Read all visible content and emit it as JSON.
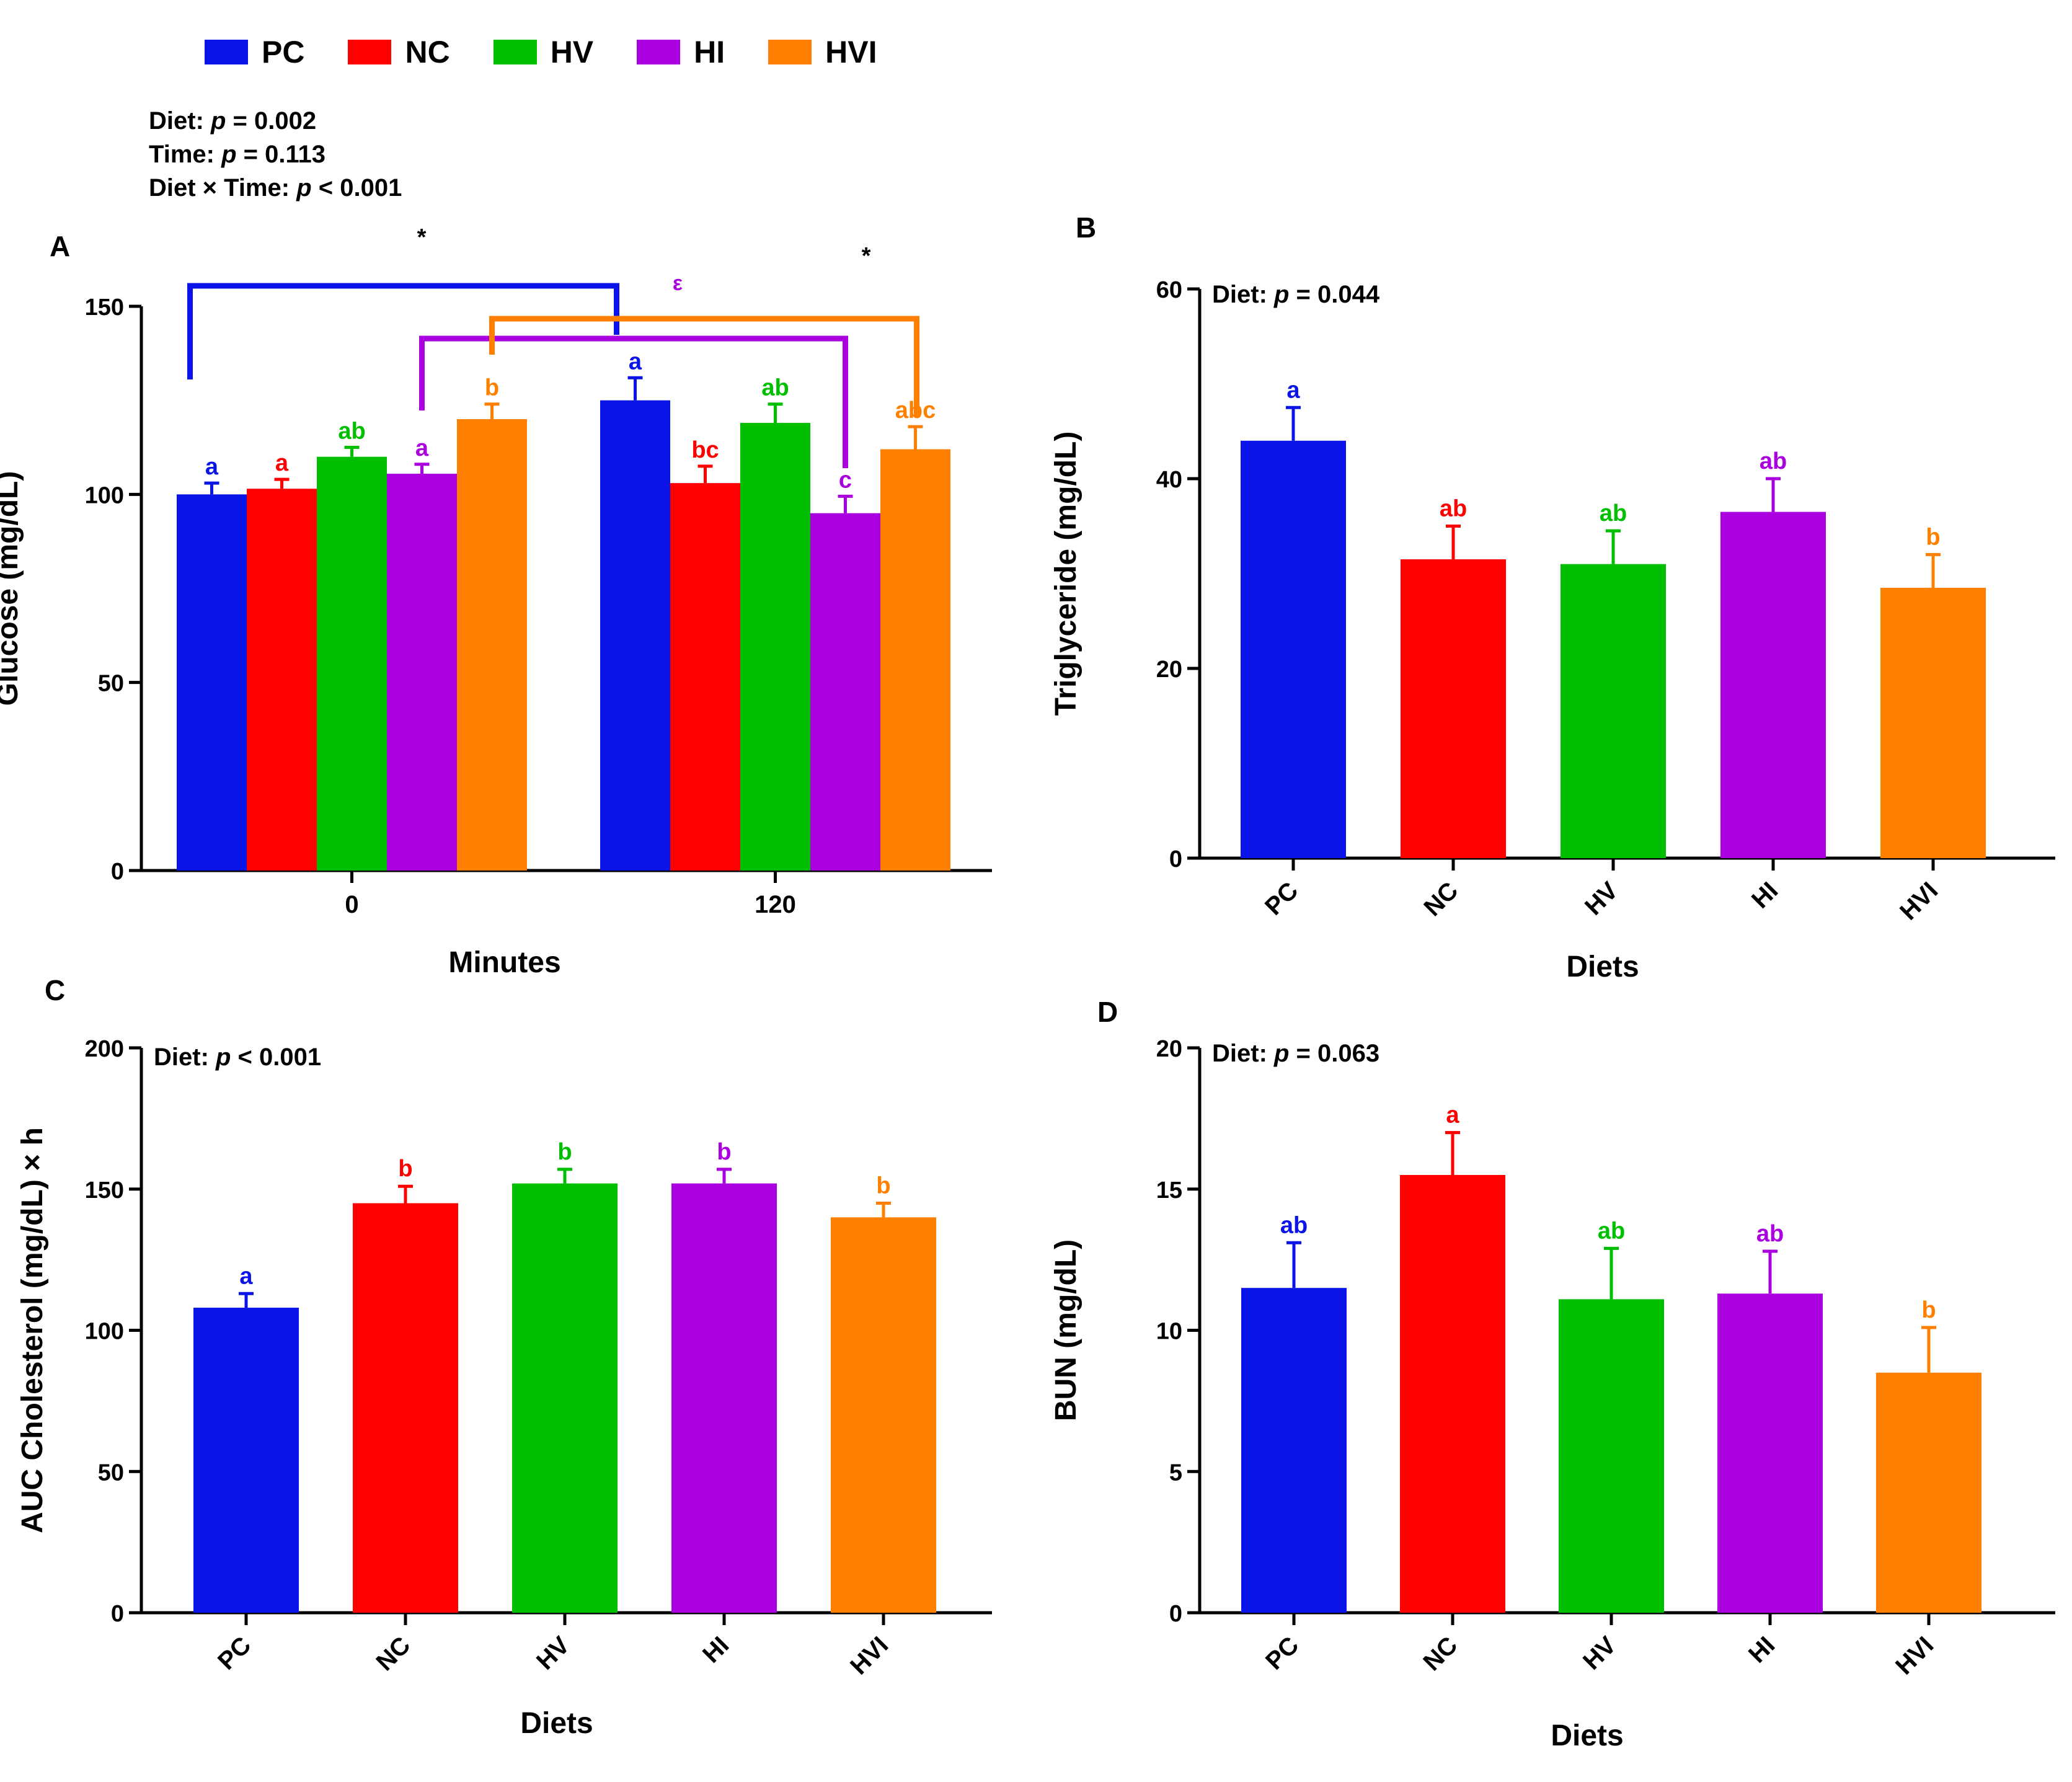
{
  "legend": [
    {
      "label": "PC",
      "color": "#0a14e6"
    },
    {
      "label": "NC",
      "color": "#ff0000"
    },
    {
      "label": "HV",
      "color": "#00bf00"
    },
    {
      "label": "HI",
      "color": "#aa00e0"
    },
    {
      "label": "HVI",
      "color": "#ff8000"
    }
  ],
  "stats": {
    "line1_prefix": "Diet: ",
    "line1_p": "p",
    "line1_rest": " = 0.002",
    "line2_prefix": "Time: ",
    "line2_p": "p",
    "line2_rest": " = 0.113",
    "line3_prefix": "Diet × Time: ",
    "line3_p": "p",
    "line3_rest": " < 0.001"
  },
  "panels": {
    "a": "A",
    "b": "B",
    "c": "C",
    "d": "D"
  },
  "chart_data": [
    {
      "id": "A",
      "type": "bar",
      "title": "",
      "xlabel": "Minutes",
      "ylabel": "Glucose (mg/dL)",
      "ylim": [
        0,
        150
      ],
      "yticks": [
        0,
        50,
        100,
        150
      ],
      "categories": [
        "0",
        "120"
      ],
      "series": [
        {
          "name": "PC",
          "color": "#0a14e6",
          "values": [
            100,
            125
          ],
          "errors": [
            3,
            6
          ],
          "letters": [
            "a",
            "a"
          ]
        },
        {
          "name": "NC",
          "color": "#ff0000",
          "values": [
            101.5,
            103
          ],
          "errors": [
            2.5,
            4.5
          ],
          "letters": [
            "a",
            "bc"
          ]
        },
        {
          "name": "HV",
          "color": "#00bf00",
          "values": [
            110,
            119
          ],
          "errors": [
            2.5,
            5
          ],
          "letters": [
            "ab",
            "ab"
          ]
        },
        {
          "name": "HI",
          "color": "#aa00e0",
          "values": [
            105.5,
            95
          ],
          "errors": [
            2.5,
            4.5
          ],
          "letters": [
            "a",
            "c"
          ]
        },
        {
          "name": "HVI",
          "color": "#ff8000",
          "values": [
            120,
            112
          ],
          "errors": [
            4,
            6
          ],
          "letters": [
            "b",
            "abc"
          ]
        }
      ],
      "annotations": {
        "star1": "*",
        "star2": "*",
        "epsilon": "ε"
      }
    },
    {
      "id": "B",
      "type": "bar",
      "title": "",
      "stat_prefix": "Diet: ",
      "stat_p": "p",
      "stat_rest": " = 0.044",
      "xlabel": "Diets",
      "ylabel": "Triglyceride (mg/dL)",
      "ylim": [
        0,
        60
      ],
      "yticks": [
        0,
        20,
        40,
        60
      ],
      "categories": [
        "PC",
        "NC",
        "HV",
        "HI",
        "HVI"
      ],
      "values": [
        44,
        31.5,
        31,
        36.5,
        28.5
      ],
      "errors": [
        3.5,
        3.5,
        3.5,
        3.5,
        3.5
      ],
      "letters": [
        "a",
        "ab",
        "ab",
        "ab",
        "b"
      ],
      "colors": [
        "#0a14e6",
        "#ff0000",
        "#00bf00",
        "#aa00e0",
        "#ff8000"
      ]
    },
    {
      "id": "C",
      "type": "bar",
      "title": "",
      "stat_prefix": "Diet: ",
      "stat_p": "p",
      "stat_rest": " < 0.001",
      "xlabel": "Diets",
      "ylabel": "AUC Cholesterol (mg/dL) × h",
      "ylim": [
        0,
        200
      ],
      "yticks": [
        0,
        50,
        100,
        150,
        200
      ],
      "categories": [
        "PC",
        "NC",
        "HV",
        "HI",
        "HVI"
      ],
      "values": [
        108,
        145,
        152,
        152,
        140
      ],
      "errors": [
        5,
        6,
        5,
        5,
        5
      ],
      "letters": [
        "a",
        "b",
        "b",
        "b",
        "b"
      ],
      "colors": [
        "#0a14e6",
        "#ff0000",
        "#00bf00",
        "#aa00e0",
        "#ff8000"
      ]
    },
    {
      "id": "D",
      "type": "bar",
      "title": "",
      "stat_prefix": "Diet: ",
      "stat_p": "p",
      "stat_rest": " = 0.063",
      "xlabel": "Diets",
      "ylabel": "BUN (mg/dL)",
      "ylim": [
        0,
        20
      ],
      "yticks": [
        0,
        5,
        10,
        15,
        20
      ],
      "categories": [
        "PC",
        "NC",
        "HV",
        "HI",
        "HVI"
      ],
      "values": [
        11.5,
        15.5,
        11.1,
        11.3,
        8.5
      ],
      "errors": [
        1.6,
        1.5,
        1.8,
        1.5,
        1.6
      ],
      "letters": [
        "ab",
        "a",
        "ab",
        "ab",
        "b"
      ],
      "colors": [
        "#0a14e6",
        "#ff0000",
        "#00bf00",
        "#aa00e0",
        "#ff8000"
      ]
    }
  ]
}
